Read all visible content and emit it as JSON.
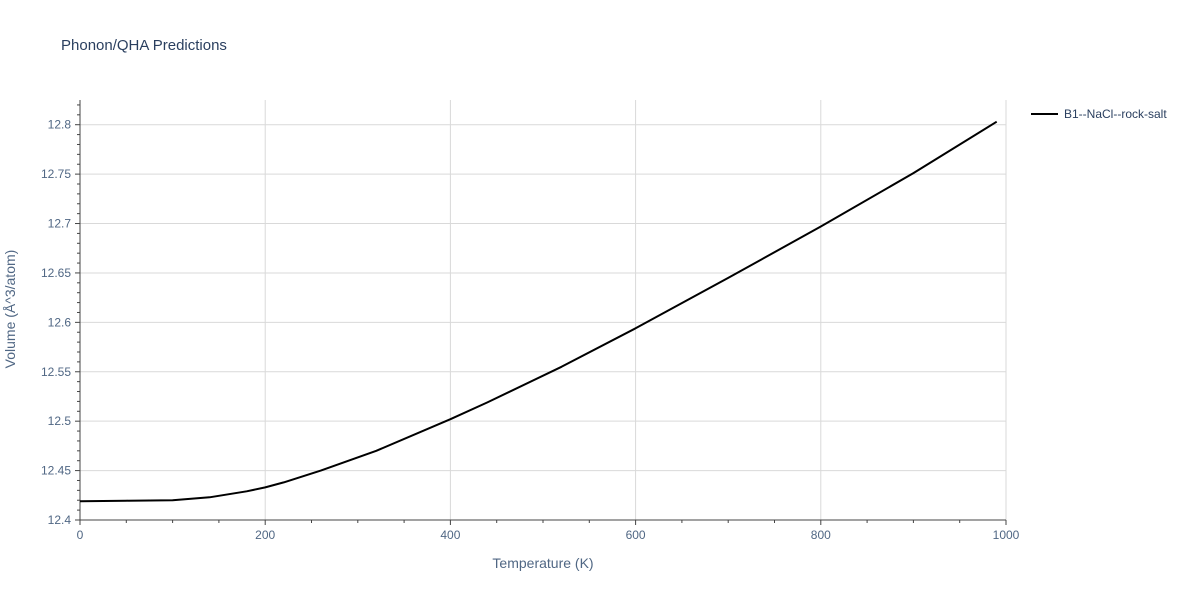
{
  "chart_data": {
    "type": "line",
    "title": "Phonon/QHA Predictions",
    "xlabel": "Temperature (K)",
    "ylabel": "Volume (Å^3/atom)",
    "xlim": [
      0,
      1000
    ],
    "ylim": [
      12.4,
      12.825
    ],
    "x_ticks": [
      0,
      200,
      400,
      600,
      800,
      1000
    ],
    "y_ticks": [
      12.4,
      12.45,
      12.5,
      12.55,
      12.6,
      12.65,
      12.7,
      12.75,
      12.8
    ],
    "x_tick_labels": [
      "0",
      "200",
      "400",
      "600",
      "800",
      "1000"
    ],
    "y_tick_labels": [
      "12.4",
      "12.45",
      "12.5",
      "12.55",
      "12.6",
      "12.65",
      "12.7",
      "12.75",
      "12.8"
    ],
    "grid": true,
    "legend_position": "top-right",
    "series": [
      {
        "name": "B1--NaCl--rock-salt",
        "color": "#000000",
        "x": [
          0,
          50,
          100,
          140,
          180,
          200,
          220,
          260,
          320,
          400,
          440,
          520,
          600,
          700,
          800,
          900,
          990
        ],
        "y": [
          12.419,
          12.4195,
          12.42,
          12.423,
          12.429,
          12.433,
          12.438,
          12.45,
          12.47,
          12.502,
          12.519,
          12.555,
          12.594,
          12.645,
          12.697,
          12.751,
          12.803
        ]
      }
    ]
  }
}
